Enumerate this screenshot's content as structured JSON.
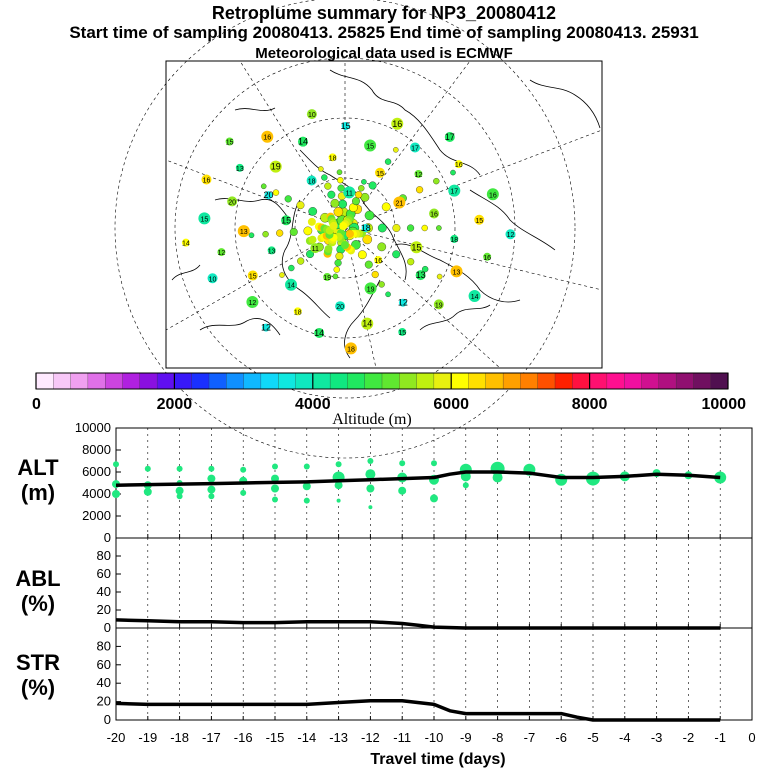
{
  "title": "Retroplume summary for NP3_20080412",
  "subtitle": "Start time of sampling 20080413. 25825     End time of sampling 20080413. 25931",
  "subtitle2": "Meteorological data used is ECMWF",
  "colorbar": {
    "label": "Altitude (m)",
    "range": [
      0,
      10000
    ],
    "ticks": [
      "0",
      "2000",
      "4000",
      "6000",
      "8000",
      "10000"
    ],
    "tick_values": [
      0,
      2000,
      4000,
      6000,
      8000,
      10000
    ],
    "colors": [
      "#ffeaff",
      "#f8c8f8",
      "#f0a0f0",
      "#e070e8",
      "#cc44e0",
      "#b020e0",
      "#8a10e0",
      "#6010f0",
      "#3818f8",
      "#1a30ff",
      "#1060ff",
      "#1090ff",
      "#10b8ff",
      "#10d8f8",
      "#10e8e0",
      "#10e8c0",
      "#10e8a0",
      "#10e880",
      "#20e860",
      "#40e840",
      "#60e830",
      "#90e820",
      "#c0f010",
      "#e8f010",
      "#ffff00",
      "#ffe000",
      "#ffc000",
      "#ffa000",
      "#ff8000",
      "#ff5000",
      "#ff2000",
      "#ff1040",
      "#ff1070",
      "#ff1090",
      "#f010a0",
      "#d01090",
      "#b01080",
      "#901070",
      "#701060",
      "#501050"
    ]
  },
  "map": {
    "numbers": [
      "18",
      "11",
      "11",
      "16",
      "15",
      "21",
      "19",
      "18",
      "15",
      "13",
      "15",
      "19",
      "20",
      "16",
      "14",
      "18",
      "13",
      "13",
      "12",
      "20",
      "19",
      "18",
      "15",
      "15",
      "12",
      "20",
      "17",
      "18",
      "14",
      "13",
      "12",
      "17",
      "14",
      "13",
      "15",
      "12",
      "15",
      "19",
      "15",
      "16",
      "14",
      "16",
      "16",
      "10",
      "16",
      "15",
      "16",
      "16",
      "12",
      "10",
      "14",
      "14",
      "17",
      "18",
      "15",
      "12"
    ]
  },
  "chart_data": [
    {
      "type": "scatter+line",
      "name": "ALT",
      "ylabel": "ALT (m)",
      "ylabel_lines": [
        "ALT",
        "(m)"
      ],
      "xlabel": "Travel time (days)",
      "xlim": [
        -20,
        0
      ],
      "ylim": [
        0,
        10000
      ],
      "yticks": [
        "0",
        "2000",
        "4000",
        "6000",
        "8000",
        "10000"
      ],
      "ytick_values": [
        0,
        2000,
        4000,
        6000,
        8000,
        10000
      ],
      "line": {
        "x": [
          -20,
          -19,
          -18,
          -17,
          -16,
          -15,
          -14,
          -13,
          -12,
          -11,
          -10,
          -9.5,
          -9,
          -8,
          -7,
          -6.5,
          -6,
          -5,
          -4,
          -3,
          -2,
          -1
        ],
        "y": [
          4800,
          4850,
          4900,
          4950,
          5000,
          5050,
          5100,
          5200,
          5300,
          5400,
          5500,
          5800,
          6000,
          6000,
          5900,
          5700,
          5500,
          5500,
          5600,
          5800,
          5700,
          5500
        ]
      },
      "points": {
        "x": [
          -20,
          -20,
          -20,
          -19,
          -19,
          -19,
          -18,
          -18,
          -18,
          -18,
          -17,
          -17,
          -17,
          -17,
          -16,
          -16,
          -16,
          -15,
          -15,
          -15,
          -15,
          -14,
          -14,
          -14,
          -13,
          -13,
          -13,
          -13,
          -12,
          -12,
          -12,
          -12,
          -11,
          -11,
          -11,
          -10,
          -10,
          -10,
          -9,
          -9,
          -9,
          -8,
          -8,
          -7,
          -6,
          -5,
          -4,
          -3,
          -2,
          -1
        ],
        "y": [
          6700,
          4900,
          4000,
          6300,
          4800,
          4200,
          6300,
          5000,
          4300,
          3800,
          6300,
          5400,
          4400,
          3800,
          6200,
          5200,
          4100,
          6500,
          5400,
          4500,
          3500,
          6500,
          4700,
          3400,
          6700,
          5500,
          4800,
          3400,
          7000,
          5800,
          4500,
          2800,
          6800,
          5500,
          4300,
          6800,
          5300,
          3600,
          6200,
          5600,
          4800,
          6300,
          5500,
          6200,
          5300,
          5400,
          5600,
          5900,
          5700,
          5500
        ],
        "size": [
          3,
          4,
          4,
          3,
          4,
          4,
          3,
          3,
          4,
          3,
          3,
          4,
          4,
          3,
          3,
          4,
          3,
          3,
          4,
          4,
          3,
          3,
          4,
          3,
          3,
          6,
          4,
          2,
          3,
          5,
          4,
          2,
          3,
          5,
          4,
          3,
          5,
          4,
          6,
          5,
          3,
          7,
          5,
          6,
          6,
          7,
          5,
          4,
          4,
          6
        ],
        "color": "#20e880"
      }
    },
    {
      "type": "line",
      "name": "ABL",
      "ylabel": "ABL (%)",
      "ylabel_lines": [
        "ABL",
        "(%)"
      ],
      "xlim": [
        -20,
        0
      ],
      "ylim": [
        0,
        100
      ],
      "yticks": [
        "0",
        "20",
        "40",
        "60",
        "80"
      ],
      "ytick_values": [
        0,
        20,
        40,
        60,
        80
      ],
      "x": [
        -20,
        -19,
        -18,
        -17,
        -16,
        -15,
        -14,
        -13,
        -12,
        -11,
        -10.5,
        -10,
        -9,
        -8,
        -7,
        -6,
        -5,
        -4,
        -3,
        -2,
        -1
      ],
      "y": [
        9,
        8,
        7,
        7,
        6,
        6,
        7,
        7,
        7,
        5,
        3,
        1,
        0,
        0,
        0,
        0,
        0,
        0,
        0,
        0,
        0
      ]
    },
    {
      "type": "line",
      "name": "STR",
      "ylabel": "STR (%)",
      "ylabel_lines": [
        "STR",
        "(%)"
      ],
      "xlabel": "Travel time (days)",
      "xlim": [
        -20,
        0
      ],
      "ylim": [
        0,
        100
      ],
      "yticks": [
        "0",
        "20",
        "40",
        "60",
        "80"
      ],
      "ytick_values": [
        0,
        20,
        40,
        60,
        80
      ],
      "xticks": [
        "-20",
        "-19",
        "-18",
        "-17",
        "-16",
        "-15",
        "-14",
        "-13",
        "-12",
        "-11",
        "-10",
        "-9",
        "-8",
        "-7",
        "-6",
        "-5",
        "-4",
        "-3",
        "-2",
        "-1",
        "0"
      ],
      "xtick_values": [
        -20,
        -19,
        -18,
        -17,
        -16,
        -15,
        -14,
        -13,
        -12,
        -11,
        -10,
        -9,
        -8,
        -7,
        -6,
        -5,
        -4,
        -3,
        -2,
        -1,
        0
      ],
      "x": [
        -20,
        -19,
        -18,
        -17,
        -16,
        -15,
        -14,
        -13,
        -12,
        -11,
        -10,
        -9.5,
        -9,
        -8,
        -7,
        -6,
        -5.5,
        -5,
        -4,
        -3,
        -2,
        -1
      ],
      "y": [
        18,
        17,
        17,
        17,
        17,
        17,
        17,
        19,
        21,
        21,
        17,
        10,
        7,
        7,
        7,
        7,
        3,
        0,
        0,
        0,
        0,
        0
      ]
    }
  ]
}
